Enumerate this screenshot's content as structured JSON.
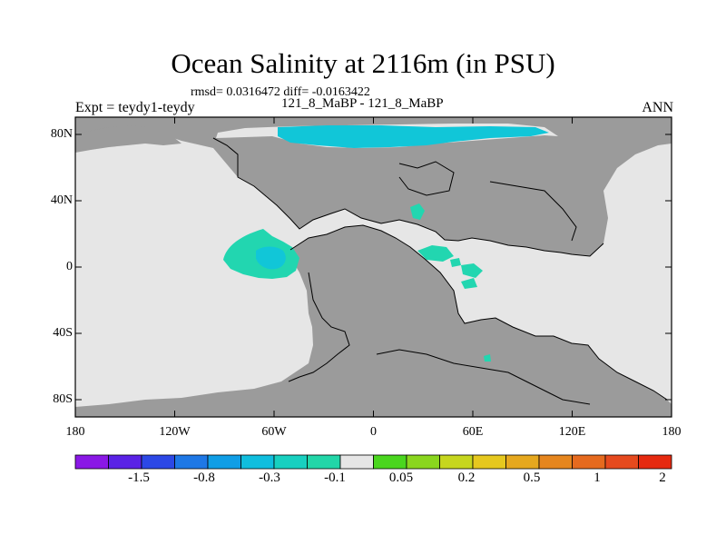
{
  "title": "Ocean Salinity at 2116m (in PSU)",
  "stats": "rmsd= 0.0316472 diff= -0.0163422",
  "experiment": "Expt = teydy1-teydy",
  "period": "121_8_MaBP - 121_8_MaBP",
  "season": "ANN",
  "map": {
    "lat_labels": [
      "80N",
      "40N",
      "0",
      "40S",
      "80S"
    ],
    "lon_labels": [
      "180",
      "120W",
      "60W",
      "0",
      "60E",
      "120E",
      "180"
    ],
    "colors": {
      "land": "#9b9b9b",
      "ocean_neutral": "#e6e6e6",
      "anomaly_minus_0_1": "#22d6b0",
      "anomaly_minus_0_3": "#11c6d8",
      "coastline": "#000000"
    }
  },
  "colorbar": {
    "labels": [
      "-1.5",
      "-0.8",
      "-0.3",
      "-0.1",
      "0.05",
      "0.2",
      "0.5",
      "1",
      "2"
    ],
    "colors": [
      "#8a18e6",
      "#5a22e6",
      "#2c48e6",
      "#1e78e6",
      "#109ee6",
      "#10bede",
      "#18d0c0",
      "#22d6a8",
      "#e6e6e6",
      "#4ad61e",
      "#8ad61e",
      "#c6d61e",
      "#e6c81e",
      "#e6a81e",
      "#e6861e",
      "#e66a1e",
      "#e64a1e",
      "#e62a10"
    ]
  }
}
